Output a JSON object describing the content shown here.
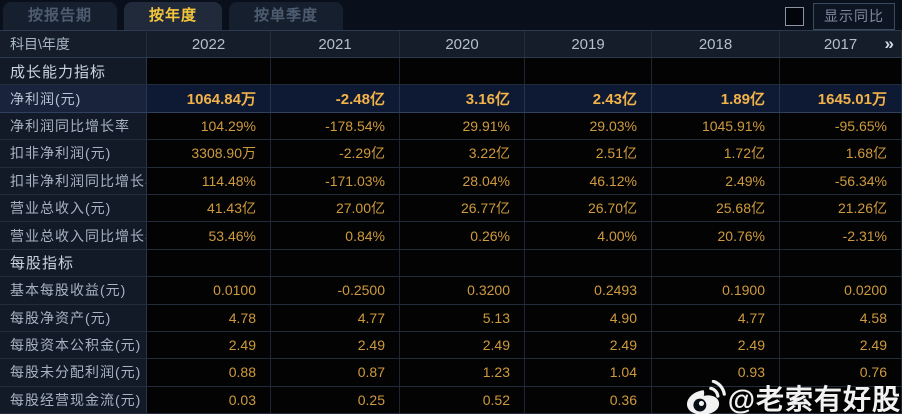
{
  "tabs": {
    "report_period": "按报告期",
    "annual": "按年度",
    "quarterly": "按单季度"
  },
  "controls": {
    "show_yoy_label": "显示同比",
    "checkbox_checked": false
  },
  "table": {
    "corner_label": "科目\\年度",
    "years": [
      "2022",
      "2021",
      "2020",
      "2019",
      "2018",
      "2017"
    ],
    "more_indicator": "»",
    "rows": [
      {
        "type": "section",
        "label": "成长能力指标",
        "values": [
          "",
          "",
          "",
          "",
          "",
          ""
        ]
      },
      {
        "type": "highlight",
        "label": "净利润(元)",
        "values": [
          "1064.84万",
          "-2.48亿",
          "3.16亿",
          "2.43亿",
          "1.89亿",
          "1645.01万"
        ]
      },
      {
        "type": "data",
        "label": "净利润同比增长率",
        "values": [
          "104.29%",
          "-178.54%",
          "29.91%",
          "29.03%",
          "1045.91%",
          "-95.65%"
        ]
      },
      {
        "type": "data",
        "label": "扣非净利润(元)",
        "values": [
          "3308.90万",
          "-2.29亿",
          "3.22亿",
          "2.51亿",
          "1.72亿",
          "1.68亿"
        ]
      },
      {
        "type": "data",
        "label": "扣非净利润同比增长率",
        "values": [
          "114.48%",
          "-171.03%",
          "28.04%",
          "46.12%",
          "2.49%",
          "-56.34%"
        ]
      },
      {
        "type": "data",
        "label": "营业总收入(元)",
        "values": [
          "41.43亿",
          "27.00亿",
          "26.77亿",
          "26.70亿",
          "25.68亿",
          "21.26亿"
        ]
      },
      {
        "type": "data",
        "label": "营业总收入同比增长率",
        "values": [
          "53.46%",
          "0.84%",
          "0.26%",
          "4.00%",
          "20.76%",
          "-2.31%"
        ]
      },
      {
        "type": "section",
        "label": "每股指标",
        "values": [
          "",
          "",
          "",
          "",
          "",
          ""
        ]
      },
      {
        "type": "data",
        "label": "基本每股收益(元)",
        "values": [
          "0.0100",
          "-0.2500",
          "0.3200",
          "0.2493",
          "0.1900",
          "0.0200"
        ]
      },
      {
        "type": "data",
        "label": "每股净资产(元)",
        "values": [
          "4.78",
          "4.77",
          "5.13",
          "4.90",
          "4.77",
          "4.58"
        ]
      },
      {
        "type": "data",
        "label": "每股资本公积金(元)",
        "values": [
          "2.49",
          "2.49",
          "2.49",
          "2.49",
          "2.49",
          "2.49"
        ]
      },
      {
        "type": "data",
        "label": "每股未分配利润(元)",
        "values": [
          "0.88",
          "0.87",
          "1.23",
          "1.04",
          "0.93",
          "0.76"
        ]
      },
      {
        "type": "data",
        "label": "每股经营现金流(元)",
        "values": [
          "0.03",
          "0.25",
          "0.52",
          "0.36",
          "",
          ""
        ]
      }
    ]
  },
  "watermark": {
    "handle": "@老索有好股",
    "icon": "weibo-icon"
  },
  "colors": {
    "value_gold": "#cf9a3d",
    "highlight_gold": "#f2b24a",
    "active_tab_text": "#f5c63c",
    "highlight_row_bg": "#0e1a33",
    "label_col_bg": "#121927",
    "header_row_bg": "#151d2a"
  }
}
